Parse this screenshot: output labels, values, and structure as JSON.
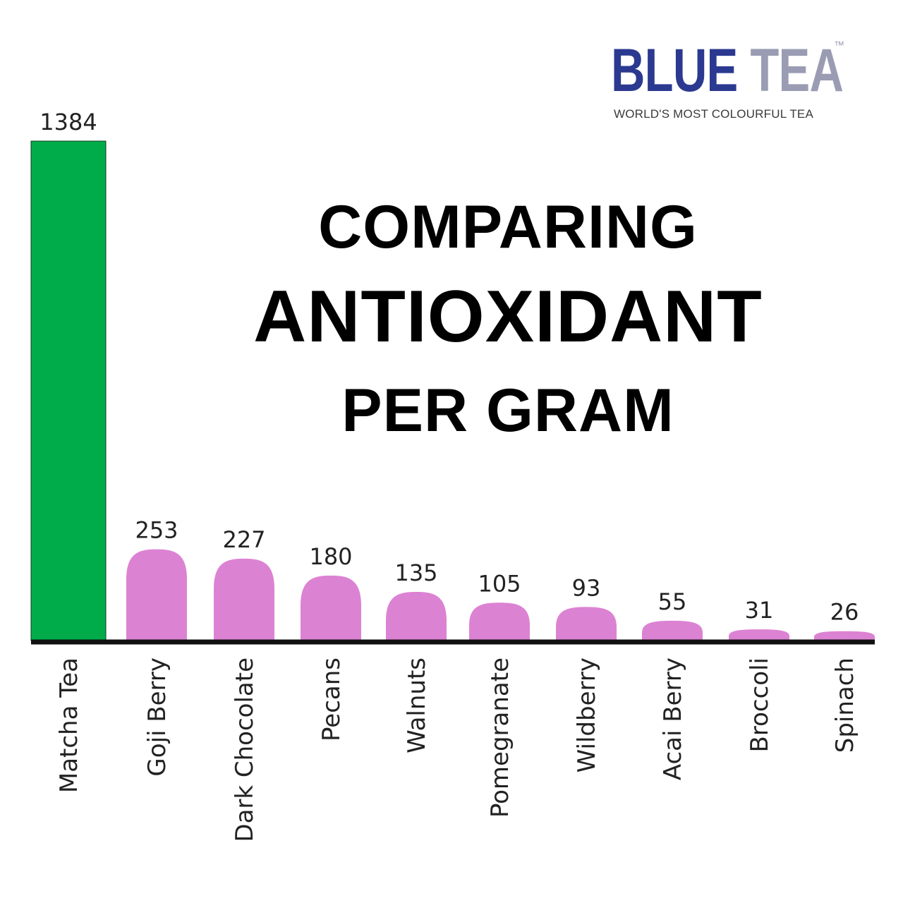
{
  "brand": {
    "name_blue": "BLUE",
    "name_tea": "TEA",
    "trademark": "™",
    "tagline": "WORLD'S MOST COLOURFUL TEA",
    "blue_color": "#2b3990",
    "tea_color": "#9a9cb3"
  },
  "chart_data": {
    "type": "bar",
    "title_lines": [
      "COMPARING",
      "ANTIOXIDANT",
      "PER GRAM"
    ],
    "categories": [
      "Matcha Tea",
      "Goji Berry",
      "Dark Chocolate",
      "Pecans",
      "Walnuts",
      "Pomegranate",
      "Wildberry",
      "Acai Berry",
      "Broccoli",
      "Spinach"
    ],
    "values": [
      1384,
      253,
      227,
      180,
      135,
      105,
      93,
      55,
      31,
      26
    ],
    "value_labels": [
      "1384",
      "253",
      "227",
      "180",
      "135",
      "105",
      "93",
      "55",
      "31",
      "26"
    ],
    "ylim": [
      0,
      1384
    ],
    "colors": {
      "highlight": "#00ac4a",
      "default": "#dc82d3",
      "axis": "#111111"
    },
    "grid": false,
    "legend": false
  }
}
